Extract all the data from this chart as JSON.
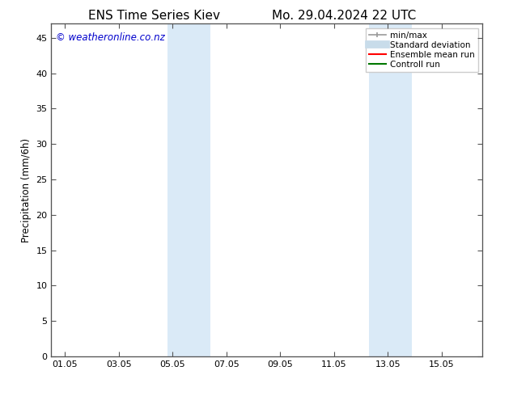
{
  "title_left": "ENS Time Series Kiev",
  "title_right": "Mo. 29.04.2024 22 UTC",
  "ylabel": "Precipitation (mm/6h)",
  "watermark": "© weatheronline.co.nz",
  "watermark_color": "#0000cc",
  "background_color": "#ffffff",
  "plot_bg_color": "#ffffff",
  "ylim": [
    0,
    47
  ],
  "yticks": [
    0,
    5,
    10,
    15,
    20,
    25,
    30,
    35,
    40,
    45
  ],
  "xtick_labels": [
    "01.05",
    "03.05",
    "05.05",
    "07.05",
    "09.05",
    "11.05",
    "13.05",
    "15.05"
  ],
  "xtick_positions": [
    0,
    2,
    4,
    6,
    8,
    10,
    12,
    14
  ],
  "xmin": -0.5,
  "xmax": 15.5,
  "shaded_regions": [
    {
      "xmin": 3.8,
      "xmax": 5.4,
      "color": "#daeaf7"
    },
    {
      "xmin": 11.3,
      "xmax": 12.9,
      "color": "#daeaf7"
    }
  ],
  "legend_entries": [
    {
      "label": "min/max",
      "color": "#999999",
      "lw": 1.2,
      "style": "line_with_caps"
    },
    {
      "label": "Standard deviation",
      "color": "#c8dcea",
      "lw": 7,
      "style": "line"
    },
    {
      "label": "Ensemble mean run",
      "color": "#ff0000",
      "lw": 1.5,
      "style": "line"
    },
    {
      "label": "Controll run",
      "color": "#007700",
      "lw": 1.5,
      "style": "line"
    }
  ],
  "title_fontsize": 11,
  "label_fontsize": 8.5,
  "tick_fontsize": 8,
  "legend_fontsize": 7.5,
  "watermark_fontsize": 8.5
}
